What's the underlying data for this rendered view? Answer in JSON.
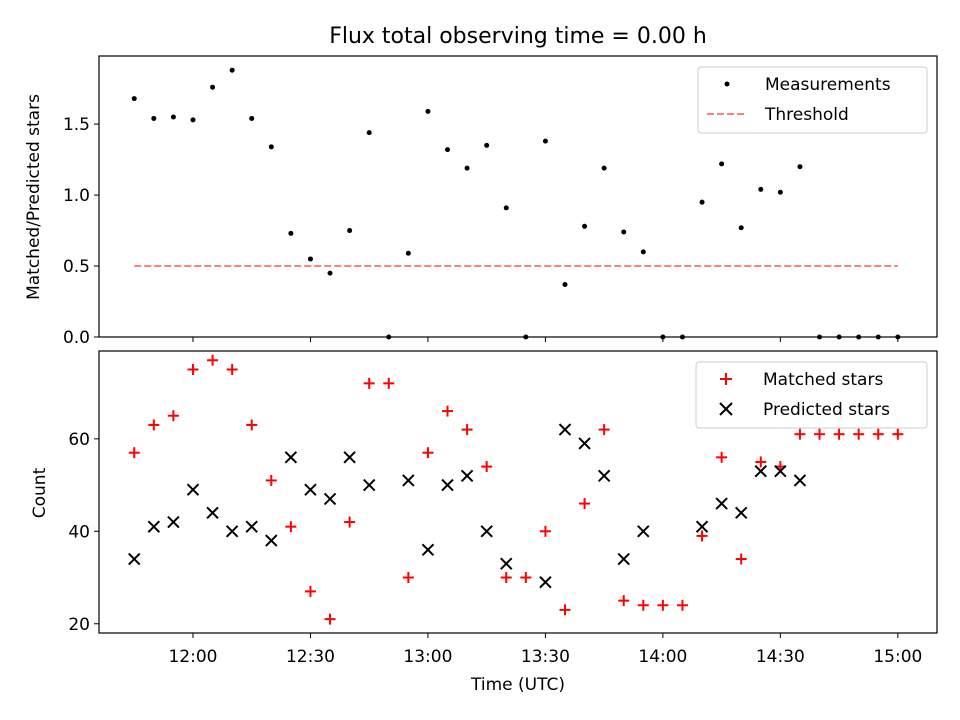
{
  "chart_data": [
    {
      "type": "scatter",
      "title": "Flux total observing time = 0.00 h",
      "xlabel": "",
      "ylabel": "Matched/Predicted stars",
      "xlim": [
        "11:36",
        "15:10"
      ],
      "ylim": [
        0,
        1.98
      ],
      "yticks": [
        0.0,
        0.5,
        1.0,
        1.5
      ],
      "ytick_labels": [
        "0.0",
        "0.5",
        "1.0",
        "1.5"
      ],
      "legend_position": "top-right",
      "series": [
        {
          "name": "Measurements",
          "marker": "dot",
          "color": "#000000",
          "x": [
            "11:45",
            "11:50",
            "11:55",
            "12:00",
            "12:05",
            "12:10",
            "12:15",
            "12:20",
            "12:25",
            "12:30",
            "12:35",
            "12:40",
            "12:45",
            "12:50",
            "12:55",
            "13:00",
            "13:05",
            "13:10",
            "13:15",
            "13:20",
            "13:25",
            "13:30",
            "13:35",
            "13:40",
            "13:45",
            "13:50",
            "13:55",
            "14:00",
            "14:05",
            "14:10",
            "14:15",
            "14:20",
            "14:25",
            "14:30",
            "14:35",
            "14:40",
            "14:45",
            "14:50",
            "14:55",
            "15:00"
          ],
          "y": [
            1.68,
            1.54,
            1.55,
            1.53,
            1.76,
            1.88,
            1.54,
            1.34,
            0.73,
            0.55,
            0.45,
            0.75,
            1.44,
            0.0,
            0.59,
            1.59,
            1.32,
            1.19,
            1.35,
            0.91,
            0.0,
            1.38,
            0.37,
            0.78,
            1.19,
            0.74,
            0.6,
            0.0,
            0.0,
            0.95,
            1.22,
            0.77,
            1.04,
            1.02,
            1.2,
            0.0,
            0.0,
            0.0,
            0.0,
            0.0
          ]
        },
        {
          "name": "Threshold",
          "type": "line",
          "style": "dashed",
          "color": "#ff7f7f",
          "x": [
            "11:45",
            "15:00"
          ],
          "y": [
            0.5,
            0.5
          ]
        }
      ]
    },
    {
      "type": "scatter",
      "title": "",
      "xlabel": "Time (UTC)",
      "ylabel": "Count",
      "xlim": [
        "11:36",
        "15:10"
      ],
      "ylim": [
        18,
        79
      ],
      "yticks": [
        20,
        40,
        60
      ],
      "ytick_labels": [
        "20",
        "40",
        "60"
      ],
      "xticks": [
        "12:00",
        "12:30",
        "13:00",
        "13:30",
        "14:00",
        "14:30",
        "15:00"
      ],
      "xtick_labels": [
        "12:00",
        "12:30",
        "13:00",
        "13:30",
        "14:00",
        "14:30",
        "15:00"
      ],
      "legend_position": "top-right",
      "series": [
        {
          "name": "Matched stars",
          "marker": "plus",
          "color": "#ff0000",
          "x": [
            "11:45",
            "11:50",
            "11:55",
            "12:00",
            "12:05",
            "12:10",
            "12:15",
            "12:20",
            "12:25",
            "12:30",
            "12:35",
            "12:40",
            "12:45",
            "12:50",
            "12:55",
            "13:00",
            "13:05",
            "13:10",
            "13:15",
            "13:20",
            "13:25",
            "13:30",
            "13:35",
            "13:40",
            "13:45",
            "13:50",
            "13:55",
            "14:00",
            "14:05",
            "14:10",
            "14:15",
            "14:20",
            "14:25",
            "14:30",
            "14:35",
            "14:40",
            "14:45",
            "14:50",
            "14:55",
            "15:00"
          ],
          "y": [
            57,
            63,
            65,
            75,
            77,
            75,
            63,
            51,
            41,
            27,
            21,
            42,
            72,
            72,
            30,
            57,
            66,
            62,
            54,
            30,
            30,
            40,
            23,
            46,
            62,
            25,
            24,
            24,
            24,
            39,
            56,
            34,
            55,
            54,
            61,
            61,
            61,
            61,
            61,
            61
          ]
        },
        {
          "name": "Predicted stars",
          "marker": "x",
          "color": "#000000",
          "x": [
            "11:45",
            "11:50",
            "11:55",
            "12:00",
            "12:05",
            "12:10",
            "12:15",
            "12:20",
            "12:25",
            "12:30",
            "12:35",
            "12:40",
            "12:45",
            "12:55",
            "13:00",
            "13:05",
            "13:10",
            "13:15",
            "13:20",
            "13:30",
            "13:35",
            "13:40",
            "13:45",
            "13:50",
            "13:55",
            "14:10",
            "14:15",
            "14:20",
            "14:25",
            "14:30",
            "14:35"
          ],
          "y": [
            34,
            41,
            42,
            49,
            44,
            40,
            41,
            38,
            56,
            49,
            47,
            56,
            50,
            51,
            36,
            50,
            52,
            40,
            33,
            29,
            62,
            59,
            52,
            34,
            40,
            41,
            46,
            44,
            53,
            53,
            51
          ]
        }
      ]
    }
  ]
}
